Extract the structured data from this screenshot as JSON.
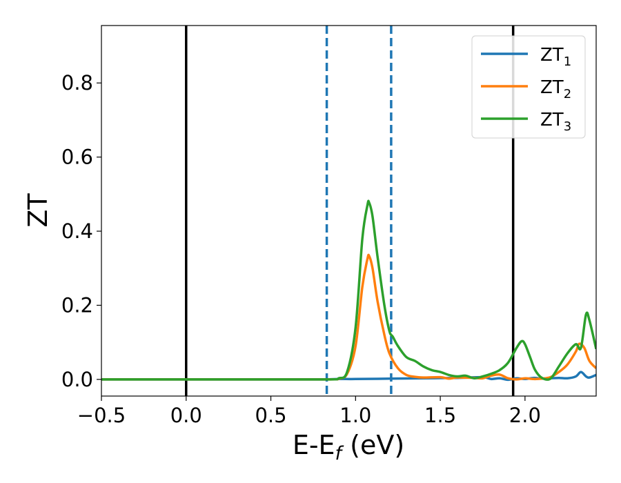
{
  "chart_data": {
    "type": "line",
    "xlabel": "E-E",
    "xlabel_sub": "f",
    "xlabel_unit": " (eV)",
    "ylabel": "ZT",
    "xlim": [
      -0.5,
      2.42
    ],
    "ylim": [
      -0.045,
      0.955
    ],
    "xticks": [
      -0.5,
      0.0,
      0.5,
      1.0,
      1.5,
      2.0
    ],
    "xtick_labels": [
      "−0.5",
      "0.0",
      "0.5",
      "1.0",
      "1.5",
      "2.0"
    ],
    "yticks": [
      0.0,
      0.2,
      0.4,
      0.6,
      0.8
    ],
    "ytick_labels": [
      "0.0",
      "0.2",
      "0.4",
      "0.6",
      "0.8"
    ],
    "grid": false,
    "legend_position": "top-right",
    "vlines": [
      {
        "x": 0.0,
        "style": "solid",
        "color": "#000000"
      },
      {
        "x": 1.93,
        "style": "solid",
        "color": "#000000"
      },
      {
        "x": 0.83,
        "style": "dashed",
        "color": "#1f77b4"
      },
      {
        "x": 1.21,
        "style": "dashed",
        "color": "#1f77b4"
      }
    ],
    "series": [
      {
        "name": "ZT",
        "name_sub": "1",
        "color": "#1f77b4",
        "x": [
          -0.5,
          0.0,
          0.5,
          0.8,
          0.9,
          1.0,
          1.2,
          1.4,
          1.6,
          1.75,
          1.8,
          1.85,
          1.9,
          1.95,
          2.0,
          2.05,
          2.1,
          2.15,
          2.2,
          2.25,
          2.3,
          2.33,
          2.36,
          2.38,
          2.42
        ],
        "y": [
          0.0,
          0.0,
          0.0,
          0.0,
          0.001,
          0.001,
          0.002,
          0.003,
          0.004,
          0.006,
          0.001,
          0.003,
          -0.001,
          0.003,
          0.001,
          0.004,
          0.002,
          0.003,
          0.004,
          0.003,
          0.008,
          0.02,
          0.008,
          0.005,
          0.012
        ]
      },
      {
        "name": "ZT",
        "name_sub": "2",
        "color": "#ff7f0e",
        "x": [
          -0.5,
          0.0,
          0.5,
          0.85,
          0.9,
          0.95,
          1.0,
          1.04,
          1.07,
          1.08,
          1.1,
          1.13,
          1.17,
          1.2,
          1.25,
          1.3,
          1.35,
          1.4,
          1.5,
          1.55,
          1.6,
          1.7,
          1.75,
          1.8,
          1.85,
          1.9,
          1.95,
          2.0,
          2.05,
          2.1,
          2.15,
          2.2,
          2.25,
          2.3,
          2.32,
          2.35,
          2.38,
          2.42
        ],
        "y": [
          0.0,
          0.0,
          0.0,
          0.0,
          0.002,
          0.015,
          0.09,
          0.25,
          0.325,
          0.333,
          0.3,
          0.21,
          0.12,
          0.07,
          0.03,
          0.012,
          0.007,
          0.005,
          0.006,
          0.002,
          0.005,
          0.004,
          0.003,
          0.01,
          0.013,
          0.003,
          0.0,
          0.003,
          0.001,
          0.002,
          0.006,
          0.02,
          0.04,
          0.075,
          0.096,
          0.085,
          0.05,
          0.03
        ]
      },
      {
        "name": "ZT",
        "name_sub": "3",
        "color": "#2ca02c",
        "x": [
          -0.5,
          0.0,
          0.5,
          0.85,
          0.9,
          0.95,
          1.0,
          1.04,
          1.07,
          1.08,
          1.1,
          1.13,
          1.17,
          1.2,
          1.22,
          1.25,
          1.3,
          1.35,
          1.4,
          1.45,
          1.5,
          1.55,
          1.6,
          1.65,
          1.7,
          1.75,
          1.8,
          1.85,
          1.9,
          1.95,
          1.98,
          2.0,
          2.03,
          2.06,
          2.1,
          2.15,
          2.2,
          2.25,
          2.3,
          2.33,
          2.36,
          2.38,
          2.42
        ],
        "y": [
          0.0,
          0.0,
          0.0,
          0.0,
          0.003,
          0.02,
          0.14,
          0.38,
          0.47,
          0.477,
          0.44,
          0.33,
          0.2,
          0.13,
          0.115,
          0.09,
          0.06,
          0.05,
          0.035,
          0.025,
          0.02,
          0.012,
          0.008,
          0.01,
          0.003,
          0.008,
          0.015,
          0.025,
          0.045,
          0.085,
          0.103,
          0.095,
          0.06,
          0.025,
          0.004,
          0.002,
          0.035,
          0.07,
          0.095,
          0.085,
          0.175,
          0.16,
          0.082
        ]
      }
    ]
  }
}
